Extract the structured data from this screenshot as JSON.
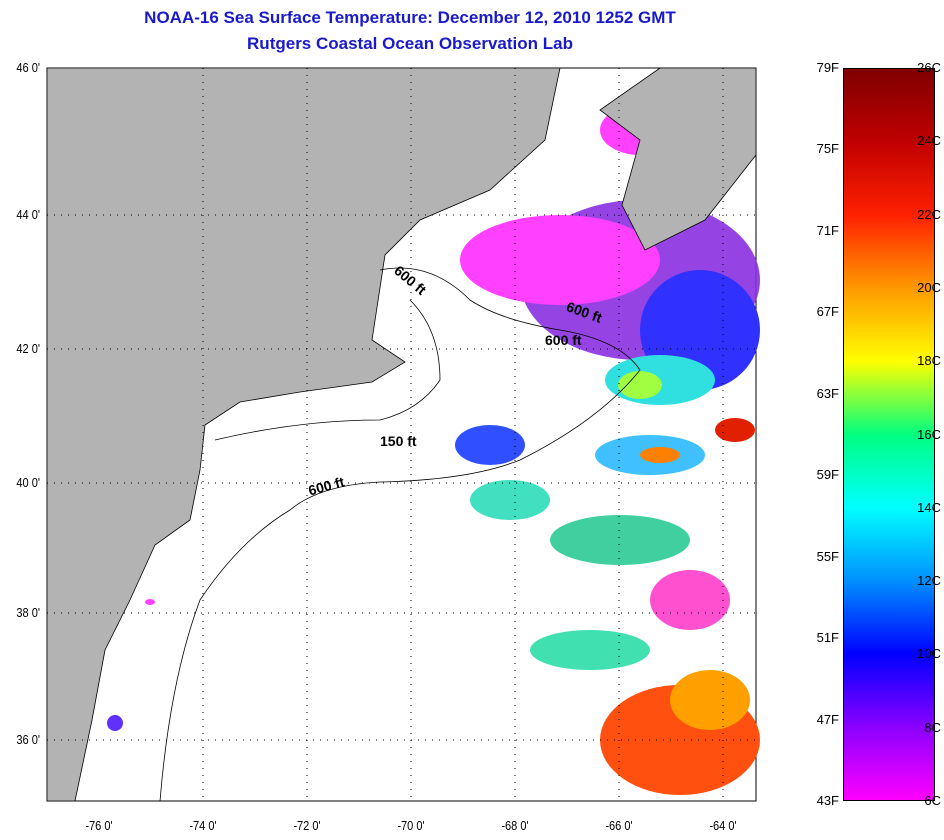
{
  "title": {
    "line1": "NOAA-16 Sea Surface Temperature:  December 12, 2010 1252 GMT",
    "line2": "Rutgers Coastal Ocean Observation Lab"
  },
  "lat_labels": [
    "46 0'",
    "44 0'",
    "42 0'",
    "40 0'",
    "38 0'",
    "36 0'"
  ],
  "lon_labels": [
    "-76 0'",
    "-74 0'",
    "-72 0'",
    "-70 0'",
    "-68 0'",
    "-66 0'",
    "-64 0'"
  ],
  "contour_labels": [
    "600 ft",
    "600 ft",
    "600 ft",
    "150 ft",
    "600 ft"
  ],
  "colorbar": {
    "fahrenheit": [
      "79F",
      "75F",
      "71F",
      "67F",
      "63F",
      "59F",
      "55F",
      "51F",
      "47F",
      "43F"
    ],
    "celsius": [
      "26C",
      "24C",
      "22C",
      "20C",
      "18C",
      "16C",
      "14C",
      "12C",
      "10C",
      "8C",
      "6C"
    ],
    "colors": [
      "#ff00ff",
      "#8a00ff",
      "#0000ff",
      "#0090ff",
      "#00ffff",
      "#00ff80",
      "#ffff00",
      "#ff9900",
      "#ff2000",
      "#c00000",
      "#800000"
    ]
  },
  "land_color": "#b3b3b3"
}
